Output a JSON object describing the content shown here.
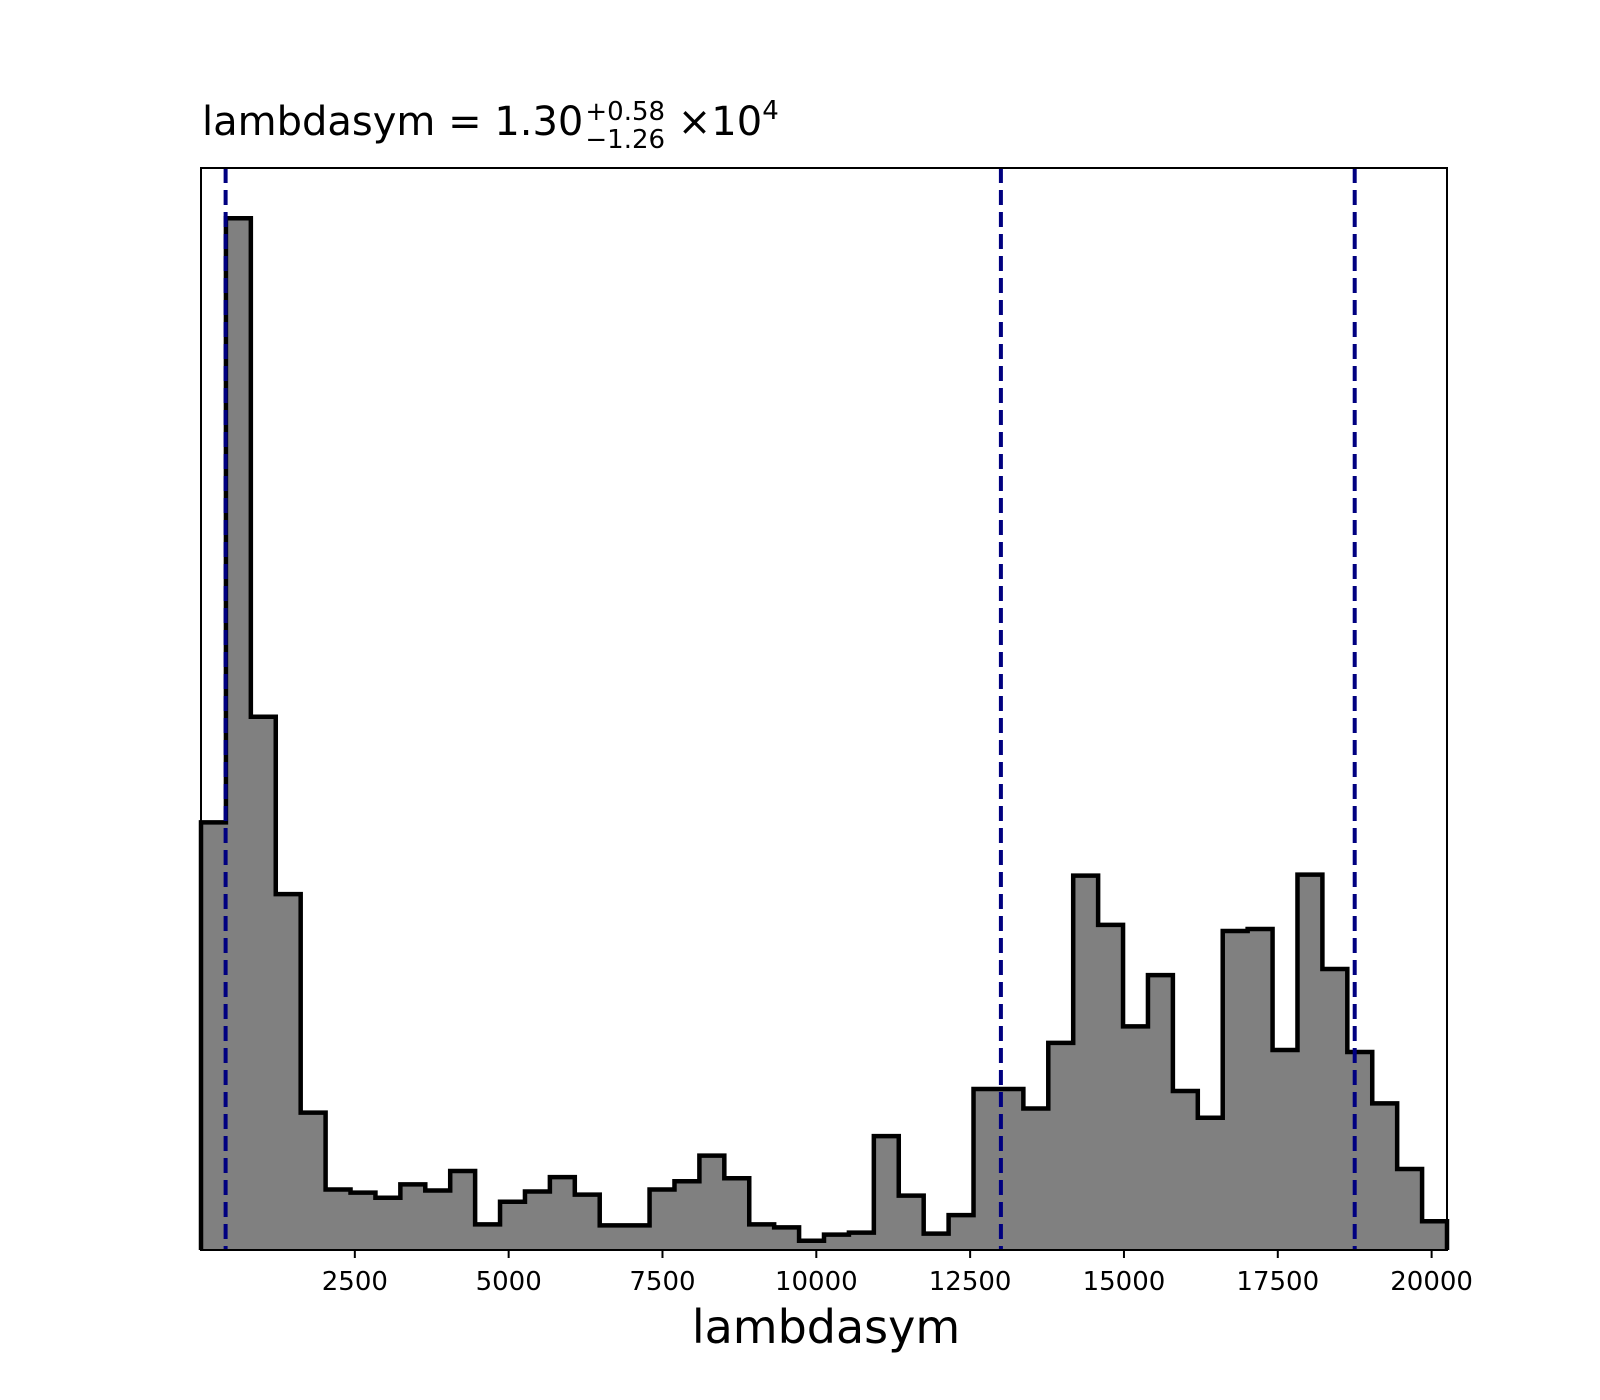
{
  "chart_data": {
    "type": "histogram",
    "title": {
      "label": "lambdasym",
      "equals": "=",
      "value": "1.30",
      "upper": "+0.58",
      "lower": "−1.26",
      "times": "×",
      "base": "10",
      "exponent": "4"
    },
    "xlabel": "lambdasym",
    "ylabel": "",
    "xlim": [
      0,
      20250
    ],
    "ylim": [
      0,
      1055
    ],
    "x_ticks": [
      2500,
      5000,
      7500,
      10000,
      12500,
      15000,
      17500,
      20000
    ],
    "bin_edges": [
      0,
      405,
      810,
      1215,
      1620,
      2025,
      2430,
      2835,
      3240,
      3645,
      4050,
      4455,
      4860,
      5265,
      5670,
      6075,
      6480,
      6885,
      7290,
      7695,
      8100,
      8505,
      8910,
      9315,
      9720,
      10125,
      10530,
      10935,
      11340,
      11745,
      12150,
      12555,
      12960,
      13365,
      13770,
      14175,
      14580,
      14985,
      15390,
      15795,
      16200,
      16605,
      17010,
      17415,
      17820,
      18225,
      18630,
      19035,
      19440,
      19845,
      20250
    ],
    "counts": [
      417,
      1006,
      520,
      347,
      134,
      59,
      56,
      51,
      64,
      58,
      77,
      25,
      47,
      57,
      71,
      54,
      24,
      24,
      59,
      67,
      92,
      70,
      25,
      22,
      9,
      15,
      17,
      111,
      53,
      16,
      34,
      157,
      157,
      138,
      202,
      365,
      317,
      218,
      268,
      155,
      129,
      311,
      313,
      195,
      366,
      274,
      193,
      143,
      79,
      28
    ],
    "fill_color": "#808080",
    "edge_color": "#000000",
    "vlines": {
      "values": [
        400,
        13000,
        18750
      ],
      "color": "#000080",
      "style": "dashed"
    },
    "grid": false,
    "legend": "none"
  }
}
